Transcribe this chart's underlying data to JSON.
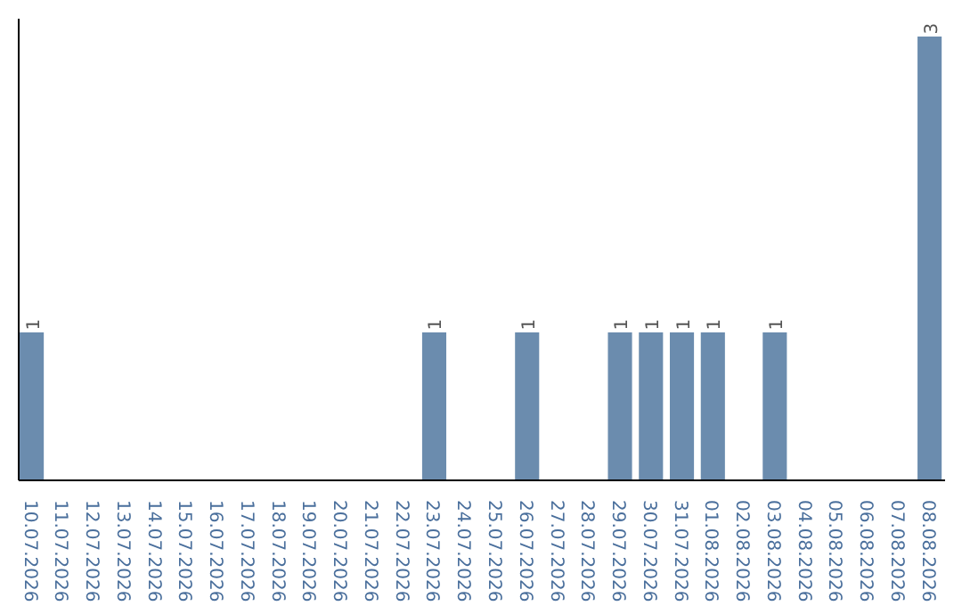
{
  "chart_data": {
    "type": "bar",
    "categories": [
      "10.07.2026",
      "11.07.2026",
      "12.07.2026",
      "13.07.2026",
      "14.07.2026",
      "15.07.2026",
      "16.07.2026",
      "17.07.2026",
      "18.07.2026",
      "19.07.2026",
      "20.07.2026",
      "21.07.2026",
      "22.07.2026",
      "23.07.2026",
      "24.07.2026",
      "25.07.2026",
      "26.07.2026",
      "27.07.2026",
      "28.07.2026",
      "29.07.2026",
      "30.07.2026",
      "31.07.2026",
      "01.08.2026",
      "02.08.2026",
      "03.08.2026",
      "04.08.2026",
      "05.08.2026",
      "06.08.2026",
      "07.08.2026",
      "08.08.2026"
    ],
    "values": [
      1,
      0,
      0,
      0,
      0,
      0,
      0,
      0,
      0,
      0,
      0,
      0,
      0,
      1,
      0,
      0,
      1,
      0,
      0,
      1,
      1,
      1,
      1,
      0,
      1,
      0,
      0,
      0,
      0,
      3
    ],
    "value_labels": [
      "1",
      null,
      null,
      null,
      null,
      null,
      null,
      null,
      null,
      null,
      null,
      null,
      null,
      "1",
      null,
      null,
      "1",
      null,
      null,
      "1",
      "1",
      "1",
      "1",
      null,
      "1",
      null,
      null,
      null,
      null,
      "3"
    ],
    "color": "#6b8cae",
    "grid": false
  }
}
